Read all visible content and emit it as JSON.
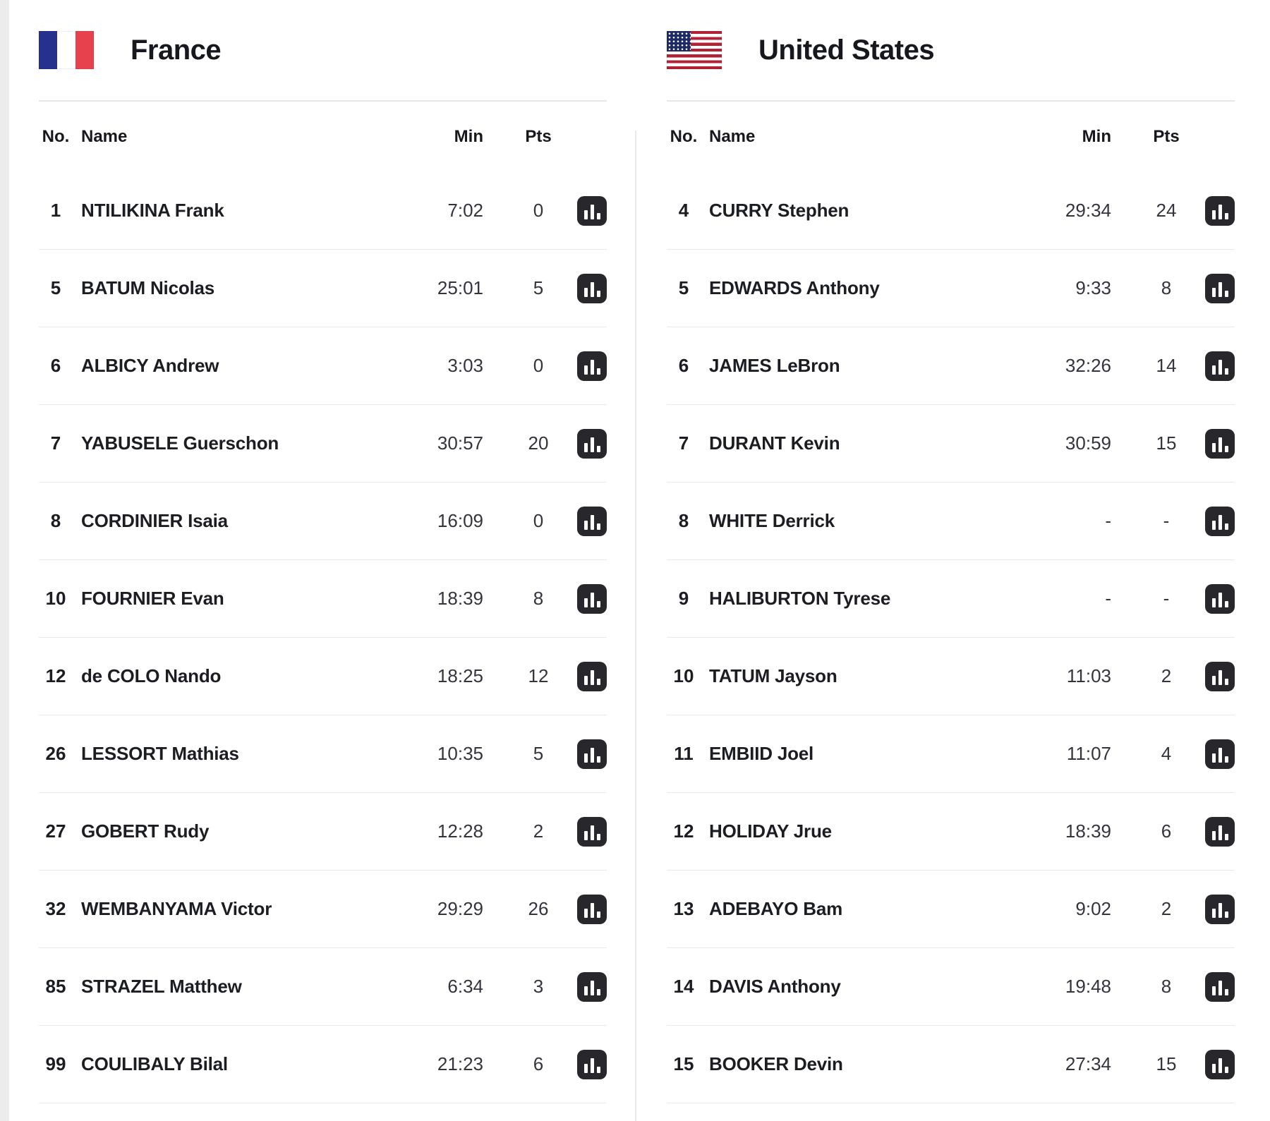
{
  "teams": [
    {
      "name": "France",
      "flag": "france",
      "columns": {
        "no": "No.",
        "name": "Name",
        "min": "Min",
        "pts": "Pts"
      },
      "players": [
        {
          "no": "1",
          "name": "NTILIKINA Frank",
          "min": "7:02",
          "pts": "0"
        },
        {
          "no": "5",
          "name": "BATUM Nicolas",
          "min": "25:01",
          "pts": "5"
        },
        {
          "no": "6",
          "name": "ALBICY Andrew",
          "min": "3:03",
          "pts": "0"
        },
        {
          "no": "7",
          "name": "YABUSELE Guerschon",
          "min": "30:57",
          "pts": "20"
        },
        {
          "no": "8",
          "name": "CORDINIER Isaia",
          "min": "16:09",
          "pts": "0"
        },
        {
          "no": "10",
          "name": "FOURNIER Evan",
          "min": "18:39",
          "pts": "8"
        },
        {
          "no": "12",
          "name": "de COLO Nando",
          "min": "18:25",
          "pts": "12"
        },
        {
          "no": "26",
          "name": "LESSORT Mathias",
          "min": "10:35",
          "pts": "5"
        },
        {
          "no": "27",
          "name": "GOBERT Rudy",
          "min": "12:28",
          "pts": "2"
        },
        {
          "no": "32",
          "name": "WEMBANYAMA Victor",
          "min": "29:29",
          "pts": "26"
        },
        {
          "no": "85",
          "name": "STRAZEL Matthew",
          "min": "6:34",
          "pts": "3"
        },
        {
          "no": "99",
          "name": "COULIBALY Bilal",
          "min": "21:23",
          "pts": "6"
        }
      ]
    },
    {
      "name": "United States",
      "flag": "united-states",
      "columns": {
        "no": "No.",
        "name": "Name",
        "min": "Min",
        "pts": "Pts"
      },
      "players": [
        {
          "no": "4",
          "name": "CURRY Stephen",
          "min": "29:34",
          "pts": "24"
        },
        {
          "no": "5",
          "name": "EDWARDS Anthony",
          "min": "9:33",
          "pts": "8"
        },
        {
          "no": "6",
          "name": "JAMES LeBron",
          "min": "32:26",
          "pts": "14"
        },
        {
          "no": "7",
          "name": "DURANT Kevin",
          "min": "30:59",
          "pts": "15"
        },
        {
          "no": "8",
          "name": "WHITE Derrick",
          "min": "-",
          "pts": "-"
        },
        {
          "no": "9",
          "name": "HALIBURTON Tyrese",
          "min": "-",
          "pts": "-"
        },
        {
          "no": "10",
          "name": "TATUM Jayson",
          "min": "11:03",
          "pts": "2"
        },
        {
          "no": "11",
          "name": "EMBIID Joel",
          "min": "11:07",
          "pts": "4"
        },
        {
          "no": "12",
          "name": "HOLIDAY Jrue",
          "min": "18:39",
          "pts": "6"
        },
        {
          "no": "13",
          "name": "ADEBAYO Bam",
          "min": "9:02",
          "pts": "2"
        },
        {
          "no": "14",
          "name": "DAVIS Anthony",
          "min": "19:48",
          "pts": "8"
        },
        {
          "no": "15",
          "name": "BOOKER Devin",
          "min": "27:34",
          "pts": "15"
        }
      ]
    }
  ],
  "icons": {
    "player_stats": "bar-chart-icon"
  },
  "colors": {
    "row_divider": "#e9e9e9",
    "header_divider": "#e6e6e6",
    "column_divider": "#e9e9e9",
    "icon_background": "#28282c",
    "text_primary": "#1c1d22",
    "text_secondary": "#33343d",
    "france_flag_blue": "#26318e",
    "france_flag_red": "#e8414e",
    "us_flag_red": "#b22234",
    "us_flag_blue": "#1e2a63"
  }
}
